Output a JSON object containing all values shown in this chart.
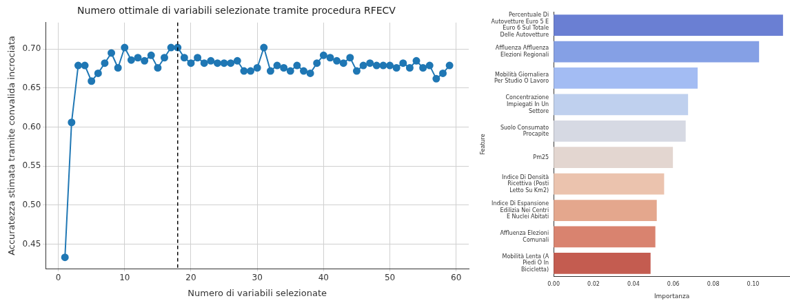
{
  "chart_data": [
    {
      "type": "line",
      "title": "Numero ottimale di variabili selezionate tramite procedura RFECV",
      "xlabel": "Numero di variabili selezionate",
      "ylabel": "Accuratezza stimata tramite convalida incrociata",
      "x": [
        1,
        2,
        3,
        4,
        5,
        6,
        7,
        8,
        9,
        10,
        11,
        12,
        13,
        14,
        15,
        16,
        17,
        18,
        19,
        20,
        21,
        22,
        23,
        24,
        25,
        26,
        27,
        28,
        29,
        30,
        31,
        32,
        33,
        34,
        35,
        36,
        37,
        38,
        39,
        40,
        41,
        42,
        43,
        44,
        45,
        46,
        47,
        48,
        49,
        50,
        51,
        52,
        53,
        54,
        55,
        56,
        57,
        58,
        59
      ],
      "series": [
        {
          "color": "#1f77b4",
          "values": [
            0.433,
            0.606,
            0.679,
            0.679,
            0.659,
            0.669,
            0.682,
            0.695,
            0.676,
            0.702,
            0.686,
            0.689,
            0.685,
            0.692,
            0.676,
            0.689,
            0.702,
            0.702,
            0.689,
            0.682,
            0.689,
            0.682,
            0.685,
            0.682,
            0.682,
            0.682,
            0.685,
            0.672,
            0.672,
            0.676,
            0.702,
            0.672,
            0.679,
            0.676,
            0.672,
            0.679,
            0.672,
            0.669,
            0.682,
            0.692,
            0.689,
            0.685,
            0.682,
            0.689,
            0.672,
            0.679,
            0.682,
            0.679,
            0.679,
            0.679,
            0.676,
            0.682,
            0.676,
            0.685,
            0.676,
            0.679,
            0.662,
            0.669,
            0.679
          ]
        }
      ],
      "xlim": [
        -1.9,
        61.9
      ],
      "xticks": [
        0,
        10,
        20,
        30,
        40,
        50,
        60
      ],
      "ylim": [
        0.4186,
        0.734
      ],
      "yticks": [
        {
          "value": 0.45,
          "label": "0.45"
        },
        {
          "value": 0.5,
          "label": "0.50"
        },
        {
          "value": 0.55,
          "label": "0.55"
        },
        {
          "value": 0.6,
          "label": "0.60"
        },
        {
          "value": 0.65,
          "label": "0.65"
        },
        {
          "value": 0.7,
          "label": "0.70"
        }
      ],
      "grid": true,
      "marker": "circle",
      "line_style": "solid",
      "ref_lines": [
        {
          "axis": "x",
          "value": 18,
          "color": "#000000",
          "line_style": "dashed"
        }
      ]
    },
    {
      "type": "bar",
      "orientation": "horizontal",
      "xlabel": "Importanza",
      "ylabel": "Feature",
      "categories": [
        "Percentuale Di Autovetture Euro 5 E Euro 6 Sul Totale Delle Autovetture",
        "Affluenza Affluenza Elezioni Regionali",
        "Mobilità Giornaliera Per Studio O Lavoro",
        "Concentrazione Impiegati In Un Settore",
        "Suolo Consumato Procapite",
        "Pm25",
        "Indice Di Densità Ricettiva (Posti Letto Su Km2)",
        "Indice Di Espansione Edilizia Nei Centri E Nuclei Abitati",
        "Affluenza Elezioni Comunali",
        "Mobilità Lenta (A Piedi O In Bicicletta)"
      ],
      "values": [
        0.115,
        0.103,
        0.0722,
        0.0674,
        0.0662,
        0.0598,
        0.0554,
        0.0517,
        0.051,
        0.0486
      ],
      "colors": [
        "#6a7fd3",
        "#85a0e5",
        "#a3bcf3",
        "#bfd0ee",
        "#d6d9e3",
        "#e3d6d0",
        "#ebc3ae",
        "#e4a78d",
        "#d9836f",
        "#c45c50"
      ],
      "xlim": [
        0,
        0.1185
      ],
      "xticks": [
        {
          "value": 0,
          "label": "0.00"
        },
        {
          "value": 0.02,
          "label": "0.02"
        },
        {
          "value": 0.04,
          "label": "0.04"
        },
        {
          "value": 0.06,
          "label": "0.06"
        },
        {
          "value": 0.08,
          "label": "0.08"
        },
        {
          "value": 0.1,
          "label": "0.10"
        }
      ]
    }
  ]
}
